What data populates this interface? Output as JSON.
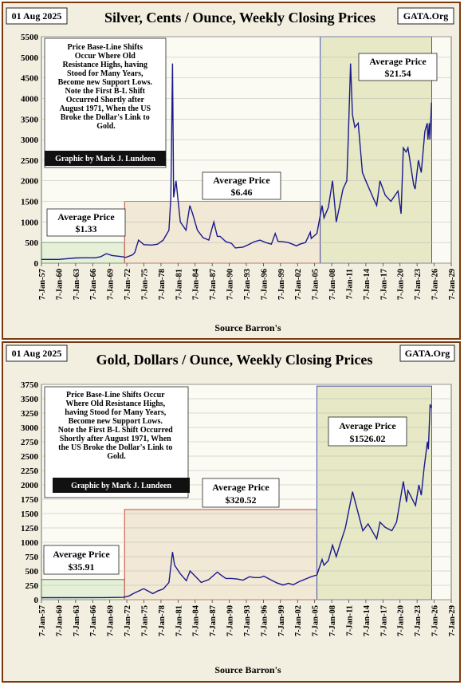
{
  "charts": [
    {
      "date_box": "01 Aug 2025",
      "title": "Silver, Cents / Ounce, Weekly Closing Prices",
      "source_tag": "GATA.Org",
      "xlabel": "Source Barron's",
      "note_lines": [
        "Price Base-Line Shifts",
        "Occur Where Old",
        "Resistance Highs,  having",
        "Stood for Many Years,",
        "Become new Support Lows.",
        "",
        "Note the First B-L Shift",
        "Occurred Shortly after",
        "August 1971, When the US",
        "Broke the Dollar's Link to",
        "Gold."
      ],
      "credit": "Graphic by Mark J. Lundeen",
      "avg_boxes": [
        {
          "label": "Average Price",
          "value": "$1.33"
        },
        {
          "label": "Average Price",
          "value": "$6.46"
        },
        {
          "label": "Average Price",
          "value": "$21.54"
        }
      ]
    },
    {
      "date_box": "01 Aug 2025",
      "title": "Gold, Dollars / Ounce, Weekly Closing Prices",
      "source_tag": "GATA.Org",
      "xlabel": "Source Barron's",
      "note_lines": [
        "Price Base-Line Shifts Occur",
        "Where Old Resistance Highs,",
        "having Stood for Many Years,",
        "Become new Support Lows.",
        "",
        "Note the First B-L Shift Occurred",
        "Shortly after August 1971, When",
        "the US Broke the Dollar's Link to",
        "Gold."
      ],
      "credit": "Graphic by Mark J. Lundeen",
      "avg_boxes": [
        {
          "label": "Average  Price",
          "value": "$35.91"
        },
        {
          "label": "Average  Price",
          "value": "$320.52"
        },
        {
          "label": "Average  Price",
          "value": "$1526.02"
        }
      ]
    }
  ],
  "chart_data": [
    {
      "type": "line",
      "title": "Silver, Cents / Ounce, Weekly Closing Prices",
      "xlabel": "Source Barron's",
      "ylabel": "",
      "ylim": [
        0,
        5500
      ],
      "xlim": [
        "1957-01-07",
        "2029-01-07"
      ],
      "grid": true,
      "yticks": [
        0,
        500,
        1000,
        1500,
        2000,
        2500,
        3000,
        3500,
        4000,
        4500,
        5000,
        5500
      ],
      "xtick_labels": [
        "7-Jan-57",
        "7-Jan-60",
        "7-Jan-63",
        "7-Jan-66",
        "7-Jan-69",
        "7-Jan-72",
        "7-Jan-75",
        "7-Jan-78",
        "7-Jan-81",
        "7-Jan-84",
        "7-Jan-87",
        "7-Jan-90",
        "7-Jan-93",
        "7-Jan-96",
        "7-Jan-99",
        "7-Jan-02",
        "7-Jan-05",
        "7-Jan-08",
        "7-Jan-11",
        "7-Jan-14",
        "7-Jan-17",
        "7-Jan-20",
        "7-Jan-23",
        "7-Jan-26",
        "7-Jan-29"
      ],
      "regions": [
        {
          "from": "1957-01-07",
          "to": "1971-08-15",
          "level": 500,
          "label": "Average Price",
          "value": "$1.33"
        },
        {
          "from": "1971-08-15",
          "to": "2006-01-01",
          "level": 1500,
          "label": "Average Price",
          "value": "$6.46"
        },
        {
          "from": "2006-01-01",
          "to": "2025-08-01",
          "level": 5500,
          "label": "Average Price",
          "value": "$21.54"
        }
      ],
      "x": [
        "1957-01-07",
        "1960-01-01",
        "1963-01-01",
        "1964-06-01",
        "1966-06-01",
        "1967-06-01",
        "1968-06-01",
        "1969-06-01",
        "1971-01-01",
        "1971-11-01",
        "1973-01-01",
        "1973-06-01",
        "1974-02-01",
        "1975-01-01",
        "1976-06-01",
        "1977-06-01",
        "1978-06-01",
        "1979-06-01",
        "1979-10-01",
        "1980-01-18",
        "1980-04-01",
        "1980-09-01",
        "1981-06-01",
        "1982-06-01",
        "1983-02-01",
        "1983-08-01",
        "1984-06-01",
        "1985-06-01",
        "1986-06-01",
        "1987-04-24",
        "1987-12-01",
        "1988-06-01",
        "1989-06-01",
        "1990-06-01",
        "1991-02-01",
        "1992-06-01",
        "1993-06-01",
        "1994-06-01",
        "1995-06-01",
        "1996-06-01",
        "1997-06-01",
        "1998-02-01",
        "1998-08-01",
        "1999-06-01",
        "2000-06-01",
        "2001-11-01",
        "2002-06-01",
        "2003-06-01",
        "2004-04-01",
        "2004-06-01",
        "2005-06-01",
        "2006-05-01",
        "2006-09-01",
        "2007-06-01",
        "2008-03-01",
        "2008-10-24",
        "2009-06-01",
        "2010-01-01",
        "2010-09-01",
        "2010-12-01",
        "2011-04-29",
        "2011-09-01",
        "2012-02-01",
        "2012-09-01",
        "2013-06-01",
        "2014-01-01",
        "2015-06-01",
        "2015-12-01",
        "2016-07-01",
        "2017-06-01",
        "2018-06-01",
        "2019-09-01",
        "2020-03-18",
        "2020-08-07",
        "2021-02-01",
        "2021-06-01",
        "2022-06-01",
        "2022-09-01",
        "2023-04-01",
        "2023-10-01",
        "2024-05-20",
        "2024-10-22",
        "2024-12-01",
        "2025-03-01",
        "2025-04-08",
        "2025-07-25"
      ],
      "series": [
        {
          "values": [
            91,
            91,
            125,
            129,
            129,
            155,
            230,
            185,
            160,
            140,
            200,
            260,
            560,
            450,
            440,
            460,
            560,
            800,
            1600,
            4850,
            1600,
            2000,
            1000,
            800,
            1400,
            1200,
            800,
            620,
            560,
            1000,
            650,
            650,
            520,
            480,
            370,
            390,
            450,
            520,
            560,
            500,
            460,
            720,
            530,
            520,
            500,
            420,
            460,
            500,
            750,
            600,
            720,
            1400,
            1100,
            1350,
            2000,
            1000,
            1400,
            1800,
            2000,
            3000,
            4850,
            3600,
            3300,
            3400,
            2200,
            2000,
            1550,
            1400,
            2000,
            1650,
            1500,
            1750,
            1200,
            2800,
            2700,
            2800,
            1900,
            1800,
            2500,
            2200,
            3200,
            3400,
            3000,
            3400,
            3000,
            3900
          ]
        }
      ]
    },
    {
      "type": "line",
      "title": "Gold, Dollars / Ounce, Weekly Closing Prices",
      "xlabel": "Source Barron's",
      "ylabel": "",
      "ylim": [
        0,
        3750
      ],
      "xlim": [
        "1957-01-07",
        "2029-01-07"
      ],
      "grid": true,
      "yticks": [
        0,
        250,
        500,
        750,
        1000,
        1250,
        1500,
        1750,
        2000,
        2250,
        2500,
        2750,
        3000,
        3250,
        3500,
        3750
      ],
      "xtick_labels": [
        "7-Jan-57",
        "7-Jan-60",
        "7-Jan-63",
        "7-Jan-66",
        "7-Jan-69",
        "7-Jan-72",
        "7-Jan-75",
        "7-Jan-78",
        "7-Jan-81",
        "7-Jan-84",
        "7-Jan-87",
        "7-Jan-90",
        "7-Jan-93",
        "7-Jan-96",
        "7-Jan-99",
        "7-Jan-02",
        "7-Jan-05",
        "7-Jan-08",
        "7-Jan-11",
        "7-Jan-14",
        "7-Jan-17",
        "7-Jan-20",
        "7-Jan-23",
        "7-Jan-26",
        "7-Jan-29"
      ],
      "regions": [
        {
          "from": "1957-01-07",
          "to": "1971-08-15",
          "level": 350,
          "label": "Average  Price",
          "value": "$35.91"
        },
        {
          "from": "1971-08-15",
          "to": "2005-06-01",
          "level": 1570,
          "label": "Average  Price",
          "value": "$320.52"
        },
        {
          "from": "2005-06-01",
          "to": "2025-08-01",
          "level": 3720,
          "label": "Average  Price",
          "value": "$1526.02"
        }
      ],
      "x": [
        "1957-01-07",
        "1968-01-01",
        "1971-06-01",
        "1972-06-01",
        "1973-06-01",
        "1974-12-30",
        "1976-08-01",
        "1977-06-01",
        "1978-06-01",
        "1979-06-01",
        "1980-01-18",
        "1980-06-01",
        "1981-06-01",
        "1982-06-21",
        "1983-02-15",
        "1984-06-01",
        "1985-02-01",
        "1986-06-01",
        "1987-12-01",
        "1988-06-01",
        "1989-06-01",
        "1990-06-01",
        "1991-06-01",
        "1992-06-01",
        "1993-08-01",
        "1994-06-01",
        "1995-06-01",
        "1996-02-01",
        "1997-06-01",
        "1998-06-01",
        "1999-07-01",
        "2000-06-01",
        "2001-04-01",
        "2002-06-01",
        "2003-06-01",
        "2004-06-01",
        "2005-06-01",
        "2006-05-01",
        "2006-09-01",
        "2007-06-01",
        "2008-03-01",
        "2008-10-24",
        "2009-06-01",
        "2010-06-01",
        "2011-09-06",
        "2012-06-01",
        "2013-06-28",
        "2014-06-01",
        "2015-12-01",
        "2016-07-01",
        "2017-06-01",
        "2018-08-01",
        "2019-06-01",
        "2020-08-07",
        "2021-03-01",
        "2021-06-01",
        "2022-09-28",
        "2023-05-01",
        "2023-10-01",
        "2024-04-01",
        "2024-10-30",
        "2025-01-01",
        "2025-04-22",
        "2025-07-25"
      ],
      "series": [
        {
          "values": [
            35,
            36,
            40,
            65,
            120,
            190,
            105,
            150,
            185,
            300,
            830,
            600,
            450,
            330,
            500,
            370,
            300,
            350,
            480,
            440,
            370,
            370,
            360,
            340,
            400,
            385,
            385,
            410,
            340,
            290,
            255,
            285,
            260,
            320,
            360,
            400,
            430,
            700,
            600,
            680,
            950,
            750,
            950,
            1250,
            1880,
            1600,
            1200,
            1320,
            1060,
            1350,
            1260,
            1200,
            1350,
            2060,
            1700,
            1900,
            1640,
            2000,
            1820,
            2300,
            2750,
            2620,
            3400,
            3340
          ]
        }
      ]
    }
  ]
}
